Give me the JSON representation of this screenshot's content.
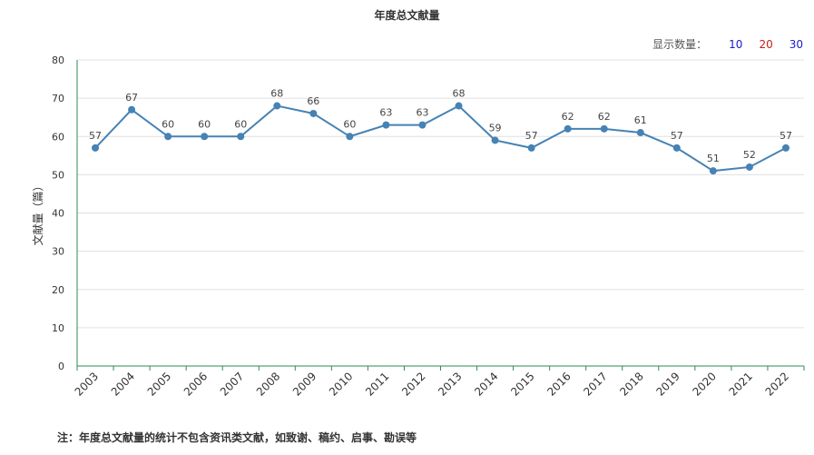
{
  "title": "年度总文献量",
  "display_count": {
    "label": "显示数量：",
    "options": [
      {
        "label": "10",
        "color": "#1a1acc"
      },
      {
        "label": "20",
        "color": "#cc1a1a"
      },
      {
        "label": "30",
        "color": "#1a1acc"
      }
    ]
  },
  "note": "注：年度总文献量的统计不包含资讯类文献，如致谢、稿约、启事、勘误等",
  "chart_data": {
    "type": "line",
    "title": "年度总文献量",
    "ylabel": "文献量（篇）",
    "xlabel": "",
    "ylim": [
      0,
      80
    ],
    "yticks": [
      0,
      10,
      20,
      30,
      40,
      50,
      60,
      70,
      80
    ],
    "grid": true,
    "categories": [
      "2003",
      "2004",
      "2005",
      "2006",
      "2007",
      "2008",
      "2009",
      "2010",
      "2011",
      "2012",
      "2013",
      "2014",
      "2015",
      "2016",
      "2017",
      "2018",
      "2019",
      "2020",
      "2021",
      "2022"
    ],
    "series": [
      {
        "values": [
          57,
          67,
          60,
          60,
          60,
          68,
          66,
          60,
          63,
          63,
          68,
          59,
          57,
          62,
          62,
          61,
          57,
          51,
          52,
          57
        ],
        "color": "#4682b4"
      }
    ]
  }
}
